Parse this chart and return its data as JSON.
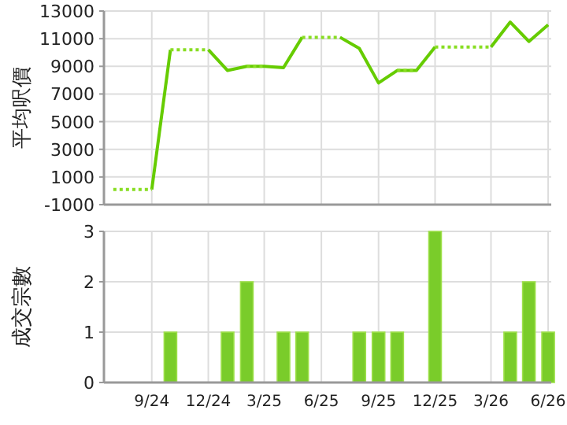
{
  "chart_data": [
    {
      "type": "line",
      "ylabel": "平均呎價",
      "ylim": [
        -1000,
        13000
      ],
      "yticks": [
        -1000,
        1000,
        3000,
        5000,
        7000,
        9000,
        11000,
        13000
      ],
      "xlim": [
        "2024-06-16",
        "2026-06-06"
      ],
      "xticks": [
        {
          "value": "2024-09",
          "label": null
        },
        {
          "value": "2024-12",
          "label": null
        },
        {
          "value": "2025-03",
          "label": null
        },
        {
          "value": "2025-06",
          "label": null
        },
        {
          "value": "2025-09",
          "label": null
        },
        {
          "value": "2025-12",
          "label": null
        },
        {
          "value": "2026-03",
          "label": null
        },
        {
          "value": "2026-06",
          "label": null
        }
      ],
      "grid": true,
      "tick_labels": "y",
      "series": [
        {
          "color": "#66cc00",
          "line_style": "solid",
          "x": [
            "2024-09",
            "2024-10"
          ],
          "values": [
            100,
            10200
          ]
        },
        {
          "color": "#66cc00",
          "line_style": "solid",
          "x": [
            "2024-12",
            "2025-01",
            "2025-02",
            "2025-03",
            "2025-04",
            "2025-05"
          ],
          "values": [
            10200,
            8700,
            9000,
            9000,
            8900,
            11100
          ]
        },
        {
          "color": "#66cc00",
          "line_style": "solid",
          "x": [
            "2025-07",
            "2025-08",
            "2025-09",
            "2025-10",
            "2025-11",
            "2025-12"
          ],
          "values": [
            11100,
            10300,
            7800,
            8700,
            8700,
            10400
          ]
        },
        {
          "color": "#66cc00",
          "line_style": "solid",
          "x": [
            "2026-03",
            "2026-04",
            "2026-05",
            "2026-06"
          ],
          "values": [
            10400,
            12200,
            10800,
            12000
          ]
        },
        {
          "color": "#88dd22",
          "line_style": "dotted",
          "x": [
            "2024-07",
            "2024-08",
            "2024-09"
          ],
          "values": [
            100,
            100,
            100
          ]
        },
        {
          "color": "#88dd22",
          "line_style": "dotted",
          "x": [
            "2024-10",
            "2024-11",
            "2024-12"
          ],
          "values": [
            10200,
            10200,
            10200
          ]
        },
        {
          "color": "#88dd22",
          "line_style": "dotted",
          "x": [
            "2025-02",
            "2025-03"
          ],
          "values": [
            9000,
            9000
          ]
        },
        {
          "color": "#88dd22",
          "line_style": "dotted",
          "x": [
            "2025-05",
            "2025-06",
            "2025-07"
          ],
          "values": [
            11100,
            11100,
            11100
          ]
        },
        {
          "color": "#88dd22",
          "line_style": "dotted",
          "x": [
            "2025-10",
            "2025-11"
          ],
          "values": [
            8700,
            8700
          ]
        },
        {
          "color": "#88dd22",
          "line_style": "dotted",
          "x": [
            "2025-12",
            "2026-01",
            "2026-02",
            "2026-03"
          ],
          "values": [
            10400,
            10400,
            10400,
            10400
          ]
        }
      ]
    },
    {
      "type": "bar",
      "ylabel": "成交宗數",
      "ylim": [
        0,
        3
      ],
      "yticks": [
        0,
        1,
        2,
        3
      ],
      "xlim": [
        "2024-06-16",
        "2026-06-06"
      ],
      "xticks": [
        {
          "value": "2024-09",
          "label": "9/24"
        },
        {
          "value": "2024-12",
          "label": "12/24"
        },
        {
          "value": "2025-03",
          "label": "3/25"
        },
        {
          "value": "2025-06",
          "label": "6/25"
        },
        {
          "value": "2025-09",
          "label": "9/25"
        },
        {
          "value": "2025-12",
          "label": "12/25"
        },
        {
          "value": "2026-03",
          "label": "3/26"
        },
        {
          "value": "2026-06",
          "label": "6/26"
        }
      ],
      "grid": true,
      "x": [
        "2024-10",
        "2025-01",
        "2025-02",
        "2025-04",
        "2025-05",
        "2025-08",
        "2025-09",
        "2025-10",
        "2025-12",
        "2026-04",
        "2026-05",
        "2026-06"
      ],
      "values": [
        1,
        1,
        2,
        1,
        1,
        1,
        1,
        1,
        3,
        1,
        2,
        1
      ],
      "color": "#7acc2a"
    }
  ]
}
